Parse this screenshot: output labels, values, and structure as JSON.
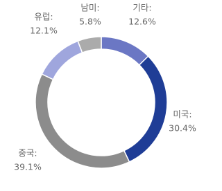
{
  "chart_data": {
    "type": "donut",
    "categories": [
      "기타:",
      "미국:",
      "중국:",
      "유럽:",
      "남미:"
    ],
    "values": [
      12.6,
      30.4,
      39.1,
      12.1,
      5.8
    ],
    "value_labels": [
      "12.6%",
      "30.4%",
      "39.1%",
      "12.1%",
      "5.8%"
    ],
    "colors": [
      "#6b77c4",
      "#1f3d96",
      "#8c8c8c",
      "#9fa6dd",
      "#ababab"
    ]
  }
}
